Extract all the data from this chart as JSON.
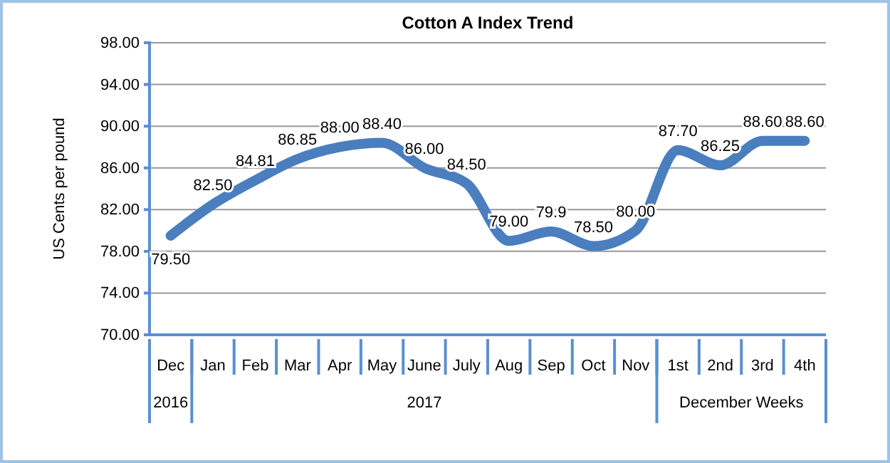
{
  "chart_data": {
    "type": "line",
    "title": "Cotton A Index Trend",
    "ylabel": "US Cents per pound",
    "categories": [
      "Dec",
      "Jan",
      "Feb",
      "Mar",
      "Apr",
      "May",
      "June",
      "July",
      "Aug",
      "Sep",
      "Oct",
      "Nov",
      "1st",
      "2nd",
      "3rd",
      "4th"
    ],
    "series": [
      {
        "color": "#4a7ebf",
        "values": [
          79.5,
          82.5,
          84.81,
          86.85,
          88.0,
          88.4,
          86.0,
          84.5,
          79.0,
          79.9,
          78.5,
          80.0,
          87.7,
          86.25,
          88.6,
          88.6
        ],
        "value_labels": [
          "79.50",
          "82.50",
          "84.81",
          "86.85",
          "88.00",
          "88.40",
          "86.00",
          "84.50",
          "79.00",
          "79.9",
          "78.50",
          "80.00",
          "87.70",
          "86.25",
          "88.60",
          "88.60"
        ]
      }
    ],
    "ylim": [
      70,
      98
    ],
    "yticks": [
      {
        "value": 70,
        "label": "70.00"
      },
      {
        "value": 74,
        "label": "74.00"
      },
      {
        "value": 78,
        "label": "78.00"
      },
      {
        "value": 82,
        "label": "82.00"
      },
      {
        "value": 86,
        "label": "86.00"
      },
      {
        "value": 90,
        "label": "90.00"
      },
      {
        "value": 94,
        "label": "94.00"
      },
      {
        "value": 98,
        "label": "98.00"
      }
    ],
    "annotations": [
      "2016",
      "2017",
      "December Weeks"
    ],
    "grid": "y",
    "marker": "none",
    "line_style": "solid"
  }
}
